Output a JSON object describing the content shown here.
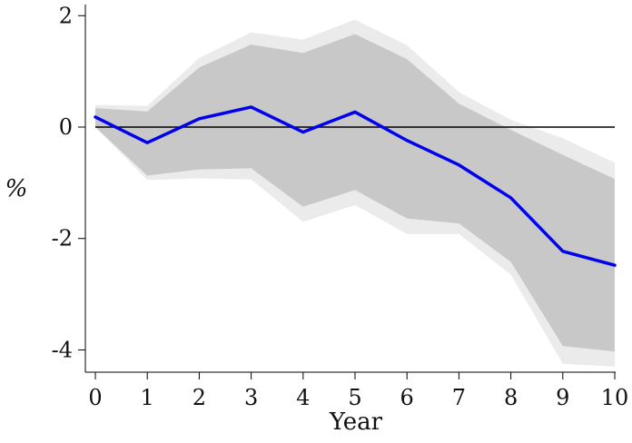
{
  "chart_data": {
    "type": "line",
    "title": "",
    "xlabel": "Year",
    "ylabel": "%",
    "x": [
      0,
      1,
      2,
      3,
      4,
      5,
      6,
      7,
      8,
      9,
      10
    ],
    "xlim": [
      0,
      10
    ],
    "ylim": [
      -4.4,
      2.2
    ],
    "x_ticks": [
      "0",
      "1",
      "2",
      "3",
      "4",
      "5",
      "6",
      "7",
      "8",
      "9",
      "10"
    ],
    "y_ticks": [
      {
        "value": 2,
        "label": "2"
      },
      {
        "value": 0,
        "label": "0"
      },
      {
        "value": -2,
        "label": "-2"
      },
      {
        "value": -4,
        "label": "-4"
      }
    ],
    "series": [
      {
        "values": [
          0.18,
          -0.28,
          0.15,
          0.36,
          -0.09,
          0.27,
          -0.24,
          -0.68,
          -1.27,
          -2.23,
          -2.48
        ],
        "color": "#0000ee"
      }
    ],
    "bands": [
      {
        "lower": [
          0.0,
          -0.95,
          -0.92,
          -0.94,
          -1.7,
          -1.4,
          -1.92,
          -1.92,
          -2.65,
          -4.25,
          -4.3
        ],
        "upper": [
          0.4,
          0.38,
          1.24,
          1.7,
          1.57,
          1.93,
          1.47,
          0.63,
          0.13,
          -0.2,
          -0.64
        ],
        "color": "#ebebeb"
      },
      {
        "lower": [
          0.0,
          -0.87,
          -0.76,
          -0.74,
          -1.43,
          -1.13,
          -1.64,
          -1.73,
          -2.42,
          -3.93,
          -4.03
        ],
        "upper": [
          0.34,
          0.28,
          1.07,
          1.48,
          1.33,
          1.67,
          1.22,
          0.42,
          -0.05,
          -0.5,
          -0.93
        ],
        "color": "#c8c8c8"
      }
    ],
    "reference_line": {
      "y": 0,
      "color": "#000000"
    },
    "grid": false,
    "legend": "none"
  }
}
